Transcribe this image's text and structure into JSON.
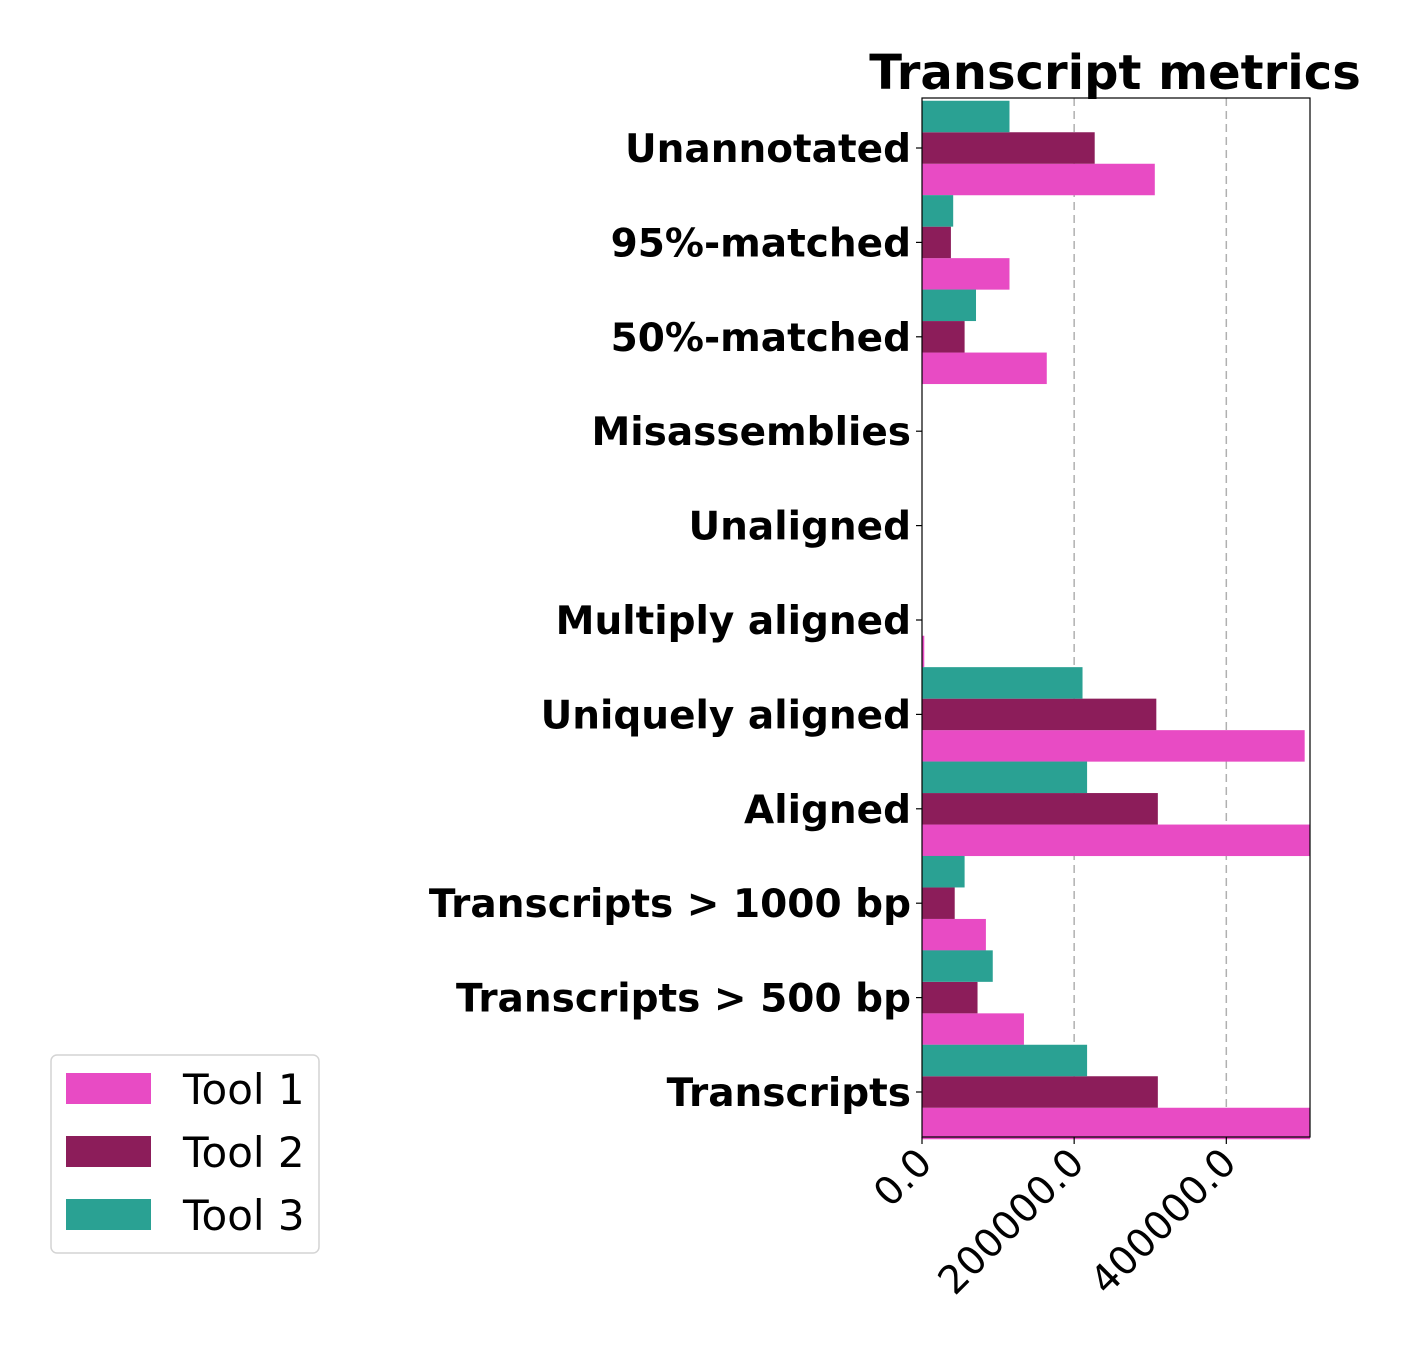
{
  "chart_data": {
    "type": "bar",
    "orientation": "horizontal",
    "title": "Transcript metrics",
    "xlabel": "",
    "ylabel": "",
    "categories": [
      "Unannotated",
      "95%-matched",
      "50%-matched",
      "Misassemblies",
      "Unaligned",
      "Multiply aligned",
      "Uniquely aligned",
      "Aligned",
      "Transcripts > 1000 bp",
      "Transcripts > 500 bp",
      "Transcripts"
    ],
    "series": [
      {
        "name": "Tool 1",
        "color": "#e84bc4",
        "values": [
          306000,
          115000,
          164000,
          0,
          0,
          3000,
          503000,
          510000,
          84000,
          134000,
          510000
        ]
      },
      {
        "name": "Tool 2",
        "color": "#8c1d5a",
        "values": [
          227000,
          38000,
          56000,
          0,
          0,
          0,
          308000,
          310000,
          43000,
          73000,
          310000
        ]
      },
      {
        "name": "Tool 3",
        "color": "#2aa193",
        "values": [
          115000,
          41000,
          71000,
          0,
          0,
          0,
          211000,
          217000,
          56000,
          93000,
          217000
        ]
      }
    ],
    "xlim": [
      0,
      510000
    ],
    "xticks": [
      0,
      200000,
      400000
    ],
    "xtick_labels": [
      "0.0",
      "200000.0",
      "400000.0"
    ],
    "grid": "x-dashed",
    "legend_position": "bottom-left"
  }
}
